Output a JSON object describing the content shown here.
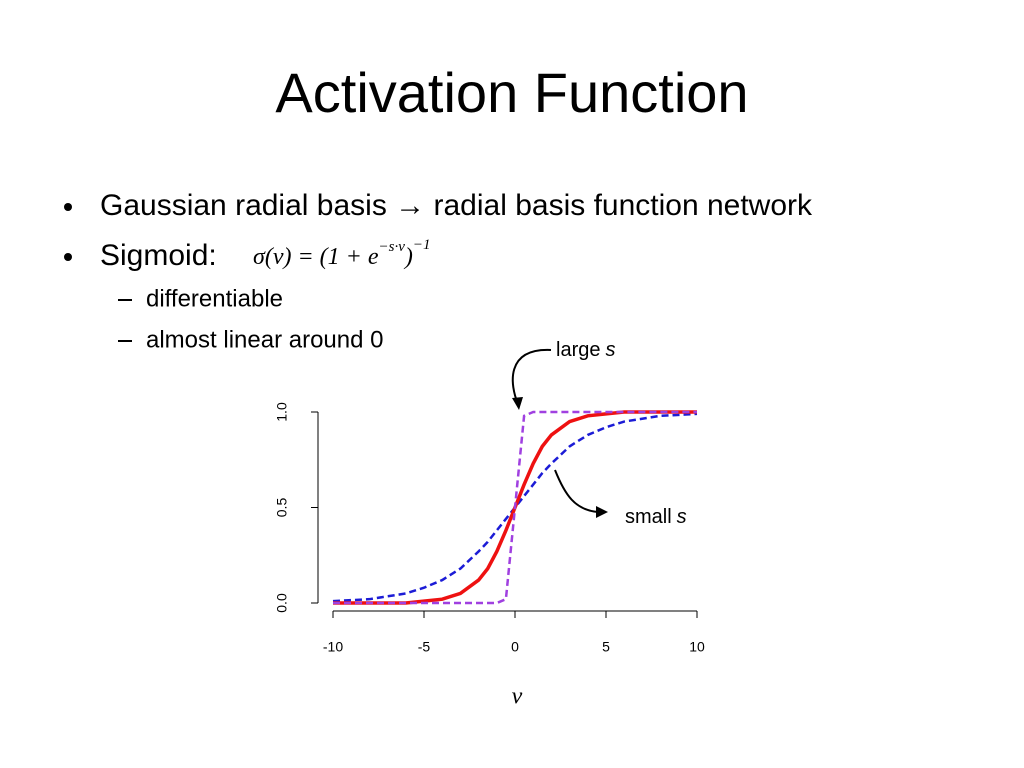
{
  "title": "Activation Function",
  "bullets": [
    {
      "text": "Gaussian radial basis → radial basis function network"
    },
    {
      "text": "Sigmoid:",
      "formula": {
        "base": "σ(v) = (1 + e",
        "exp": "−s·v",
        "close": ")",
        "outer_exp": "−1"
      }
    }
  ],
  "sub_bullets": [
    "differentiable",
    "almost linear around 0"
  ],
  "chart_data": {
    "type": "line",
    "xlabel": "v",
    "x": [
      -10,
      -8,
      -6,
      -5,
      -4,
      -3,
      -2,
      -1.5,
      -1,
      -0.5,
      0,
      0.5,
      1,
      1.5,
      2,
      3,
      4,
      5,
      6,
      8,
      10
    ],
    "series": [
      {
        "color": "#1c1cd6",
        "dash": true,
        "values": [
          0.01,
          0.02,
          0.05,
          0.08,
          0.12,
          0.18,
          0.27,
          0.32,
          0.38,
          0.44,
          0.5,
          0.56,
          0.62,
          0.68,
          0.73,
          0.82,
          0.88,
          0.92,
          0.95,
          0.98,
          0.99
        ]
      },
      {
        "color": "#ee1111",
        "dash": false,
        "values": [
          0.0,
          0.0,
          0.0,
          0.01,
          0.02,
          0.05,
          0.12,
          0.18,
          0.27,
          0.38,
          0.5,
          0.62,
          0.73,
          0.82,
          0.88,
          0.95,
          0.98,
          0.99,
          1.0,
          1.0,
          1.0
        ]
      },
      {
        "color": "#a040e0",
        "dash": true,
        "values": [
          0.0,
          0.0,
          0.0,
          0.0,
          0.0,
          0.0,
          0.0,
          0.0,
          0.0,
          0.02,
          0.5,
          0.98,
          1.0,
          1.0,
          1.0,
          1.0,
          1.0,
          1.0,
          1.0,
          1.0,
          1.0
        ]
      }
    ],
    "xlim": [
      -10,
      10
    ],
    "ylim": [
      0,
      1
    ],
    "xticks": [
      -10,
      -5,
      0,
      5,
      10
    ],
    "yticks": [
      {
        "value": 0,
        "label": "0.0"
      },
      {
        "value": 0.5,
        "label": "0.5"
      },
      {
        "value": 1,
        "label": "1.0"
      }
    ],
    "annotations": [
      {
        "text": "large",
        "var": "s"
      },
      {
        "text": "small",
        "var": "s"
      }
    ]
  }
}
